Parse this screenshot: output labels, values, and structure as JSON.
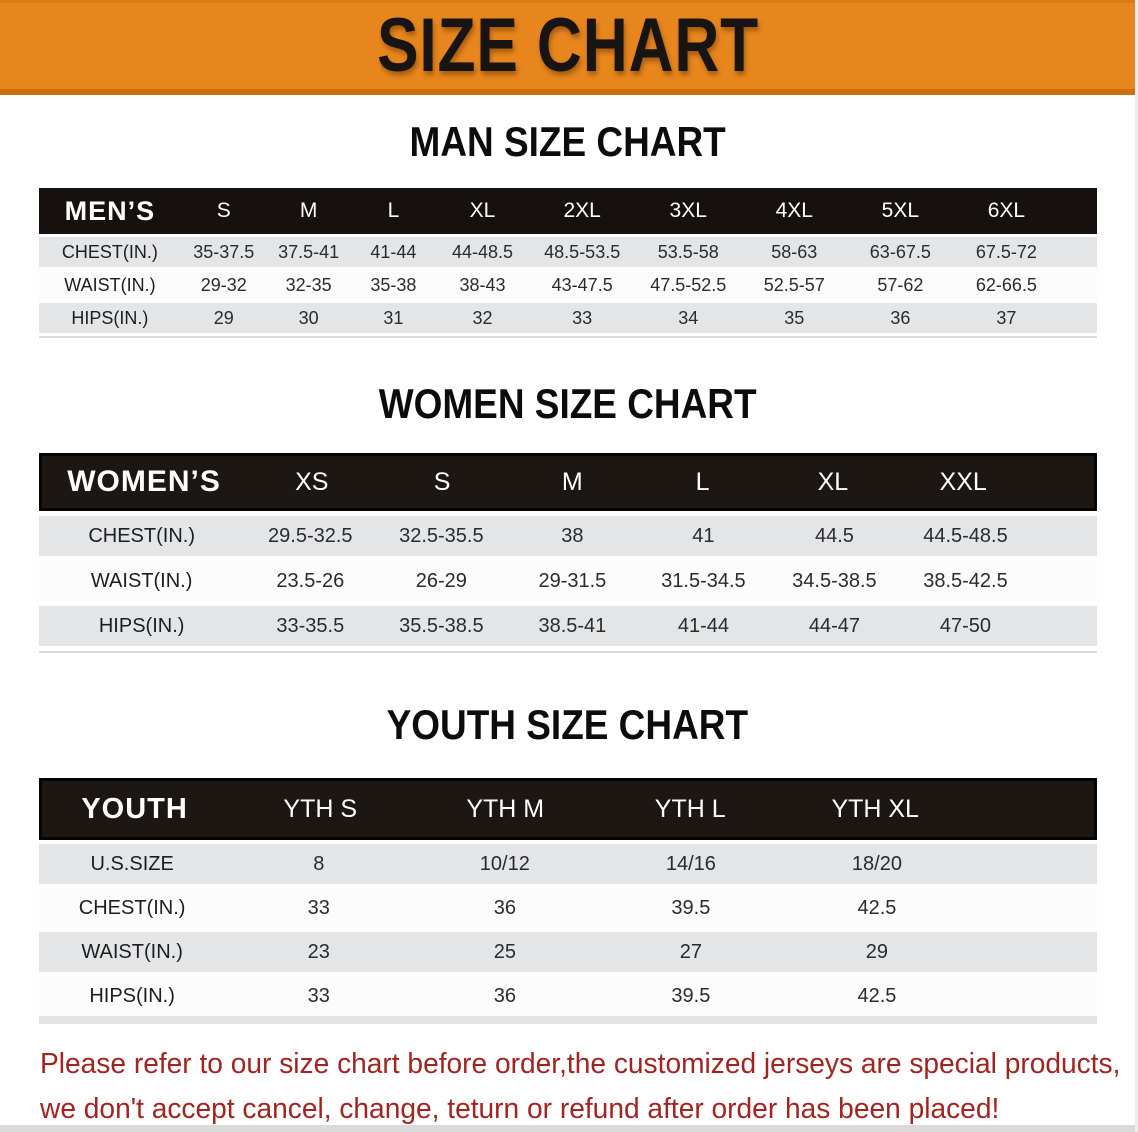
{
  "banner": {
    "title": "SIZE CHART"
  },
  "colors": {
    "banner_orange": "#e8861e",
    "banner_edge_dark": "#c96f0e",
    "header_bar_black": "#16110e",
    "row_gray": "#e4e5e7",
    "row_white": "#fcfcfd",
    "note_red": "#a22421"
  },
  "tables": [
    {
      "id": "men",
      "heading": "MAN SIZE CHART",
      "label": "MEN’S",
      "columns": [
        "S",
        "M",
        "L",
        "XL",
        "2XL",
        "3XL",
        "4XL",
        "5XL",
        "6XL"
      ],
      "rows": [
        {
          "label": "CHEST(IN.)",
          "values": [
            "35-37.5",
            "37.5-41",
            "41-44",
            "44-48.5",
            "48.5-53.5",
            "53.5-58",
            "58-63",
            "63-67.5",
            "67.5-72"
          ]
        },
        {
          "label": "WAIST(IN.)",
          "values": [
            "29-32",
            "32-35",
            "35-38",
            "38-43",
            "43-47.5",
            "47.5-52.5",
            "52.5-57",
            "57-62",
            "62-66.5"
          ]
        },
        {
          "label": "HIPS(IN.)",
          "values": [
            "29",
            "30",
            "31",
            "32",
            "33",
            "34",
            "35",
            "36",
            "37"
          ]
        }
      ]
    },
    {
      "id": "women",
      "heading": "WOMEN SIZE CHART",
      "label": "WOMEN’S",
      "columns": [
        "XS",
        "S",
        "M",
        "L",
        "XL",
        "XXL"
      ],
      "rows": [
        {
          "label": "CHEST(IN.)",
          "values": [
            "29.5-32.5",
            "32.5-35.5",
            "38",
            "41",
            "44.5",
            "44.5-48.5"
          ]
        },
        {
          "label": "WAIST(IN.)",
          "values": [
            "23.5-26",
            "26-29",
            "29-31.5",
            "31.5-34.5",
            "34.5-38.5",
            "38.5-42.5"
          ]
        },
        {
          "label": "HIPS(IN.)",
          "values": [
            "33-35.5",
            "35.5-38.5",
            "38.5-41",
            "41-44",
            "44-47",
            "47-50"
          ]
        }
      ]
    },
    {
      "id": "youth",
      "heading": "YOUTH SIZE CHART",
      "label": "YOUTH",
      "columns": [
        "YTH S",
        "YTH M",
        "YTH L",
        "YTH XL"
      ],
      "rows": [
        {
          "label": "U.S.SIZE",
          "values": [
            "8",
            "10/12",
            "14/16",
            "18/20"
          ]
        },
        {
          "label": "CHEST(IN.)",
          "values": [
            "33",
            "36",
            "39.5",
            "42.5"
          ]
        },
        {
          "label": "WAIST(IN.)",
          "values": [
            "23",
            "25",
            "27",
            "29"
          ]
        },
        {
          "label": "HIPS(IN.)",
          "values": [
            "33",
            "36",
            "39.5",
            "42.5"
          ]
        }
      ]
    }
  ],
  "note": {
    "line1": "Please refer to our size chart before order,the customized jerseys are special products,",
    "line2": "we don't accept cancel, change, teturn or refund after order has been placed!"
  }
}
